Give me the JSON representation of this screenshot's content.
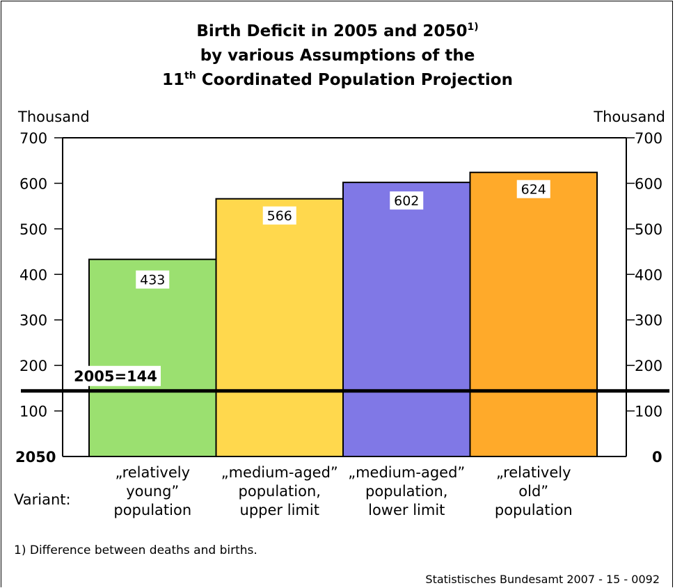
{
  "title": {
    "line1": "Birth Deficit in 2005 and 2050",
    "line1_sup": "1)",
    "line2": "by various Assumptions of the",
    "line3_num": "11",
    "line3_sup": "th",
    "line3": " Coordinated Population Projection"
  },
  "footnote": "1) Difference between deaths and births.",
  "source": "Statistisches Bundesamt 2007 - 15 - 0092",
  "chart_data": {
    "type": "bar",
    "title": "Birth Deficit in 2005 and 2050 by various Assumptions of the 11th Coordinated Population Projection",
    "ylabel_left": "Thousand",
    "ylabel_right": "Thousand",
    "ylim": [
      0,
      700
    ],
    "yticks": [
      100,
      200,
      300,
      400,
      500,
      600,
      700
    ],
    "left_zero_label": "2050",
    "right_zero_label": "0",
    "xlabel": "Variant:",
    "categories": [
      [
        "„relatively",
        "young”",
        "population"
      ],
      [
        "„medium-aged”",
        "population,",
        "upper limit"
      ],
      [
        "„medium-aged”",
        "population,",
        "lower limit"
      ],
      [
        "„relatively",
        "old”",
        "population"
      ]
    ],
    "values": [
      433,
      566,
      602,
      624
    ],
    "colors": [
      "#9be070",
      "#ffd84d",
      "#8078e6",
      "#ffaa2a"
    ],
    "reference_line": {
      "value": 144,
      "label": "2005=144"
    },
    "grid": false
  }
}
